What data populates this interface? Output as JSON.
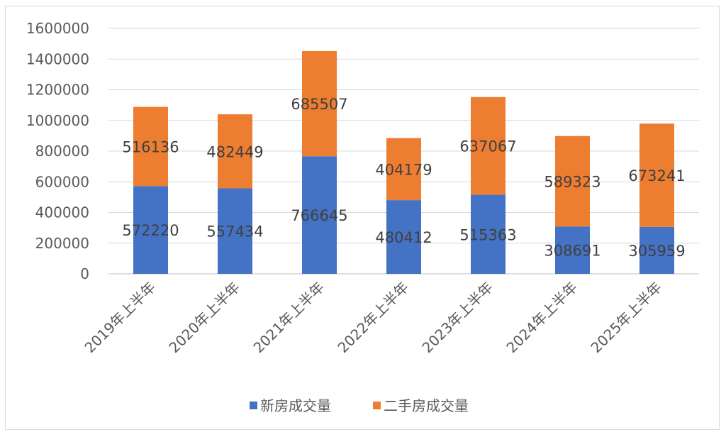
{
  "chart_data": {
    "type": "bar",
    "stacked": true,
    "title": "",
    "xlabel": "",
    "ylabel": "",
    "ylim": [
      0,
      1600000
    ],
    "yticks": [
      0,
      200000,
      400000,
      600000,
      800000,
      1000000,
      1200000,
      1400000,
      1600000
    ],
    "grid": true,
    "legend_position": "bottom",
    "categories": [
      "2019年上半年",
      "2020年上半年",
      "2021年上半年",
      "2022年上半年",
      "2023年上半年",
      "2024年上半年",
      "2025年上半年"
    ],
    "series": [
      {
        "name": "新房成交量",
        "color": "#4472c4",
        "values": [
          572220,
          557434,
          766645,
          480412,
          515363,
          308691,
          305959
        ]
      },
      {
        "name": "二手房成交量",
        "color": "#ed7d31",
        "values": [
          516136,
          482449,
          685507,
          404179,
          637067,
          589323,
          673241
        ]
      }
    ]
  }
}
